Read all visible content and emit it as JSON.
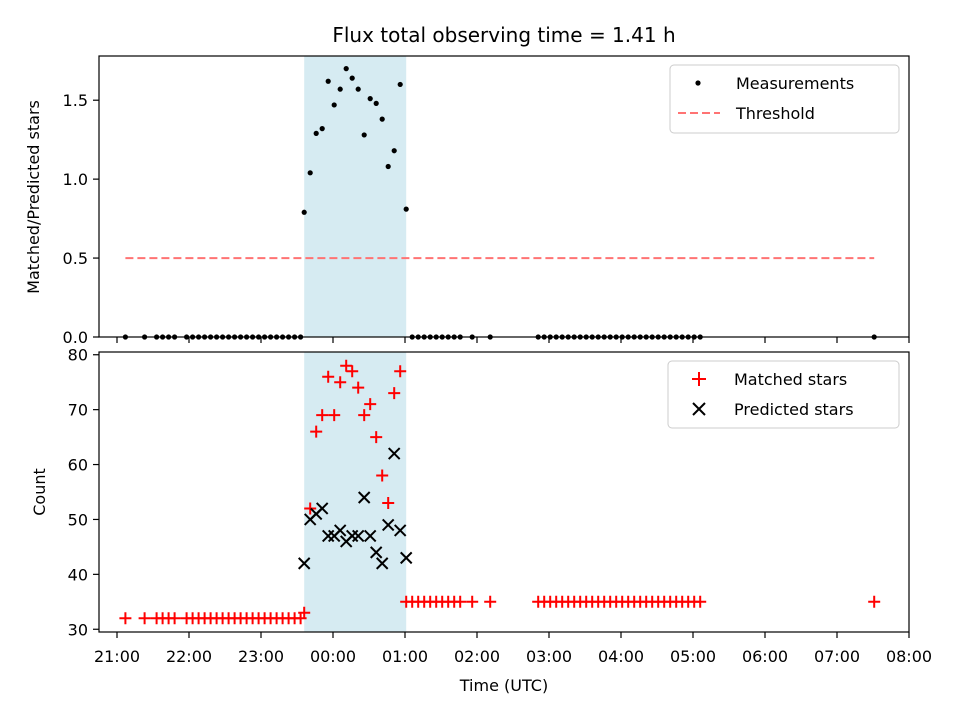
{
  "colors": {
    "band": "#add8e6",
    "measurement": "#000000",
    "threshold": "#ff7373",
    "matched": "#ff0000",
    "predicted": "#000000"
  },
  "chart_data": [
    {
      "type": "scatter",
      "title": "Flux total observing time = 1.41 h",
      "xlabel": "",
      "ylabel": "Matched/Predicted stars",
      "xlim": [
        "20:45",
        "08:00"
      ],
      "ylim": [
        0,
        1.78
      ],
      "yticks": [
        "0.0",
        "0.5",
        "1.0",
        "1.5"
      ],
      "ytick_values": [
        0,
        0.5,
        1.0,
        1.5
      ],
      "grid": false,
      "legend": "top-right",
      "highlight_band": {
        "x_start": "23:36",
        "x_end": "01:01"
      },
      "series": [
        {
          "name": "Measurements",
          "marker": "dot",
          "points": [
            [
              "21:07",
              0
            ],
            [
              "21:23",
              0
            ],
            [
              "21:33",
              0
            ],
            [
              "21:38",
              0
            ],
            [
              "21:43",
              0
            ],
            [
              "21:48",
              0
            ],
            [
              "21:58",
              0
            ],
            [
              "22:03",
              0
            ],
            [
              "22:08",
              0
            ],
            [
              "22:13",
              0
            ],
            [
              "22:18",
              0
            ],
            [
              "22:23",
              0
            ],
            [
              "22:28",
              0
            ],
            [
              "22:33",
              0
            ],
            [
              "22:38",
              0
            ],
            [
              "22:43",
              0
            ],
            [
              "22:48",
              0
            ],
            [
              "22:53",
              0
            ],
            [
              "22:58",
              0
            ],
            [
              "23:03",
              0
            ],
            [
              "23:08",
              0
            ],
            [
              "23:13",
              0
            ],
            [
              "23:18",
              0
            ],
            [
              "23:23",
              0
            ],
            [
              "23:28",
              0
            ],
            [
              "23:33",
              0
            ],
            [
              "23:36",
              0.79
            ],
            [
              "23:41",
              1.04
            ],
            [
              "23:46",
              1.29
            ],
            [
              "23:51",
              1.32
            ],
            [
              "23:56",
              1.62
            ],
            [
              "00:01",
              1.47
            ],
            [
              "00:06",
              1.57
            ],
            [
              "00:11",
              1.7
            ],
            [
              "00:16",
              1.64
            ],
            [
              "00:21",
              1.57
            ],
            [
              "00:26",
              1.28
            ],
            [
              "00:31",
              1.51
            ],
            [
              "00:36",
              1.48
            ],
            [
              "00:41",
              1.38
            ],
            [
              "00:46",
              1.08
            ],
            [
              "00:51",
              1.18
            ],
            [
              "00:56",
              1.6
            ],
            [
              "01:01",
              0.81
            ],
            [
              "01:06",
              0
            ],
            [
              "01:11",
              0
            ],
            [
              "01:16",
              0
            ],
            [
              "01:21",
              0
            ],
            [
              "01:26",
              0
            ],
            [
              "01:31",
              0
            ],
            [
              "01:36",
              0
            ],
            [
              "01:41",
              0
            ],
            [
              "01:46",
              0
            ],
            [
              "01:56",
              0
            ],
            [
              "02:11",
              0
            ],
            [
              "02:51",
              0
            ],
            [
              "02:56",
              0
            ],
            [
              "03:01",
              0
            ],
            [
              "03:06",
              0
            ],
            [
              "03:11",
              0
            ],
            [
              "03:16",
              0
            ],
            [
              "03:21",
              0
            ],
            [
              "03:26",
              0
            ],
            [
              "03:31",
              0
            ],
            [
              "03:36",
              0
            ],
            [
              "03:41",
              0
            ],
            [
              "03:46",
              0
            ],
            [
              "03:51",
              0
            ],
            [
              "03:56",
              0
            ],
            [
              "04:01",
              0
            ],
            [
              "04:06",
              0
            ],
            [
              "04:11",
              0
            ],
            [
              "04:16",
              0
            ],
            [
              "04:21",
              0
            ],
            [
              "04:26",
              0
            ],
            [
              "04:31",
              0
            ],
            [
              "04:36",
              0
            ],
            [
              "04:41",
              0
            ],
            [
              "04:46",
              0
            ],
            [
              "04:51",
              0
            ],
            [
              "04:56",
              0
            ],
            [
              "05:01",
              0
            ],
            [
              "05:06",
              0
            ],
            [
              "07:31",
              0
            ]
          ]
        },
        {
          "name": "Threshold",
          "marker": "dashed-line",
          "points": [
            [
              "21:07",
              0.5
            ],
            [
              "07:31",
              0.5
            ]
          ]
        }
      ]
    },
    {
      "type": "scatter",
      "title": "",
      "xlabel": "Time (UTC)",
      "ylabel": "Count",
      "xlim": [
        "20:45",
        "08:00"
      ],
      "ylim": [
        29.5,
        80.5
      ],
      "xticks": [
        "21:00",
        "22:00",
        "23:00",
        "00:00",
        "01:00",
        "02:00",
        "03:00",
        "04:00",
        "05:00",
        "06:00",
        "07:00",
        "08:00"
      ],
      "yticks": [
        "30",
        "40",
        "50",
        "60",
        "70",
        "80"
      ],
      "ytick_values": [
        30,
        40,
        50,
        60,
        70,
        80
      ],
      "grid": false,
      "legend": "top-right",
      "highlight_band": {
        "x_start": "23:36",
        "x_end": "01:01"
      },
      "series": [
        {
          "name": "Matched stars",
          "marker": "plus",
          "points": [
            [
              "21:07",
              32
            ],
            [
              "21:23",
              32
            ],
            [
              "21:33",
              32
            ],
            [
              "21:38",
              32
            ],
            [
              "21:43",
              32
            ],
            [
              "21:48",
              32
            ],
            [
              "21:58",
              32
            ],
            [
              "22:03",
              32
            ],
            [
              "22:08",
              32
            ],
            [
              "22:13",
              32
            ],
            [
              "22:18",
              32
            ],
            [
              "22:23",
              32
            ],
            [
              "22:28",
              32
            ],
            [
              "22:33",
              32
            ],
            [
              "22:38",
              32
            ],
            [
              "22:43",
              32
            ],
            [
              "22:48",
              32
            ],
            [
              "22:53",
              32
            ],
            [
              "22:58",
              32
            ],
            [
              "23:03",
              32
            ],
            [
              "23:08",
              32
            ],
            [
              "23:13",
              32
            ],
            [
              "23:18",
              32
            ],
            [
              "23:23",
              32
            ],
            [
              "23:28",
              32
            ],
            [
              "23:33",
              32
            ],
            [
              "23:36",
              33
            ],
            [
              "23:41",
              52
            ],
            [
              "23:46",
              66
            ],
            [
              "23:51",
              69
            ],
            [
              "23:56",
              76
            ],
            [
              "00:01",
              69
            ],
            [
              "00:06",
              75
            ],
            [
              "00:11",
              78
            ],
            [
              "00:16",
              77
            ],
            [
              "00:21",
              74
            ],
            [
              "00:26",
              69
            ],
            [
              "00:31",
              71
            ],
            [
              "00:36",
              65
            ],
            [
              "00:41",
              58
            ],
            [
              "00:46",
              53
            ],
            [
              "00:51",
              73
            ],
            [
              "00:56",
              77
            ],
            [
              "01:01",
              35
            ],
            [
              "01:06",
              35
            ],
            [
              "01:11",
              35
            ],
            [
              "01:16",
              35
            ],
            [
              "01:21",
              35
            ],
            [
              "01:26",
              35
            ],
            [
              "01:31",
              35
            ],
            [
              "01:36",
              35
            ],
            [
              "01:41",
              35
            ],
            [
              "01:46",
              35
            ],
            [
              "01:56",
              35
            ],
            [
              "02:11",
              35
            ],
            [
              "02:51",
              35
            ],
            [
              "02:56",
              35
            ],
            [
              "03:01",
              35
            ],
            [
              "03:06",
              35
            ],
            [
              "03:11",
              35
            ],
            [
              "03:16",
              35
            ],
            [
              "03:21",
              35
            ],
            [
              "03:26",
              35
            ],
            [
              "03:31",
              35
            ],
            [
              "03:36",
              35
            ],
            [
              "03:41",
              35
            ],
            [
              "03:46",
              35
            ],
            [
              "03:51",
              35
            ],
            [
              "03:56",
              35
            ],
            [
              "04:01",
              35
            ],
            [
              "04:06",
              35
            ],
            [
              "04:11",
              35
            ],
            [
              "04:16",
              35
            ],
            [
              "04:21",
              35
            ],
            [
              "04:26",
              35
            ],
            [
              "04:31",
              35
            ],
            [
              "04:36",
              35
            ],
            [
              "04:41",
              35
            ],
            [
              "04:46",
              35
            ],
            [
              "04:51",
              35
            ],
            [
              "04:56",
              35
            ],
            [
              "05:01",
              35
            ],
            [
              "05:06",
              35
            ],
            [
              "07:31",
              35
            ]
          ]
        },
        {
          "name": "Predicted stars",
          "marker": "cross",
          "points": [
            [
              "23:36",
              42
            ],
            [
              "23:41",
              50
            ],
            [
              "23:46",
              51
            ],
            [
              "23:51",
              52
            ],
            [
              "23:56",
              47
            ],
            [
              "00:01",
              47
            ],
            [
              "00:06",
              48
            ],
            [
              "00:11",
              46
            ],
            [
              "00:16",
              47
            ],
            [
              "00:21",
              47
            ],
            [
              "00:26",
              54
            ],
            [
              "00:31",
              47
            ],
            [
              "00:36",
              44
            ],
            [
              "00:41",
              42
            ],
            [
              "00:46",
              49
            ],
            [
              "00:51",
              62
            ],
            [
              "00:56",
              48
            ],
            [
              "01:01",
              43
            ]
          ]
        }
      ]
    }
  ]
}
